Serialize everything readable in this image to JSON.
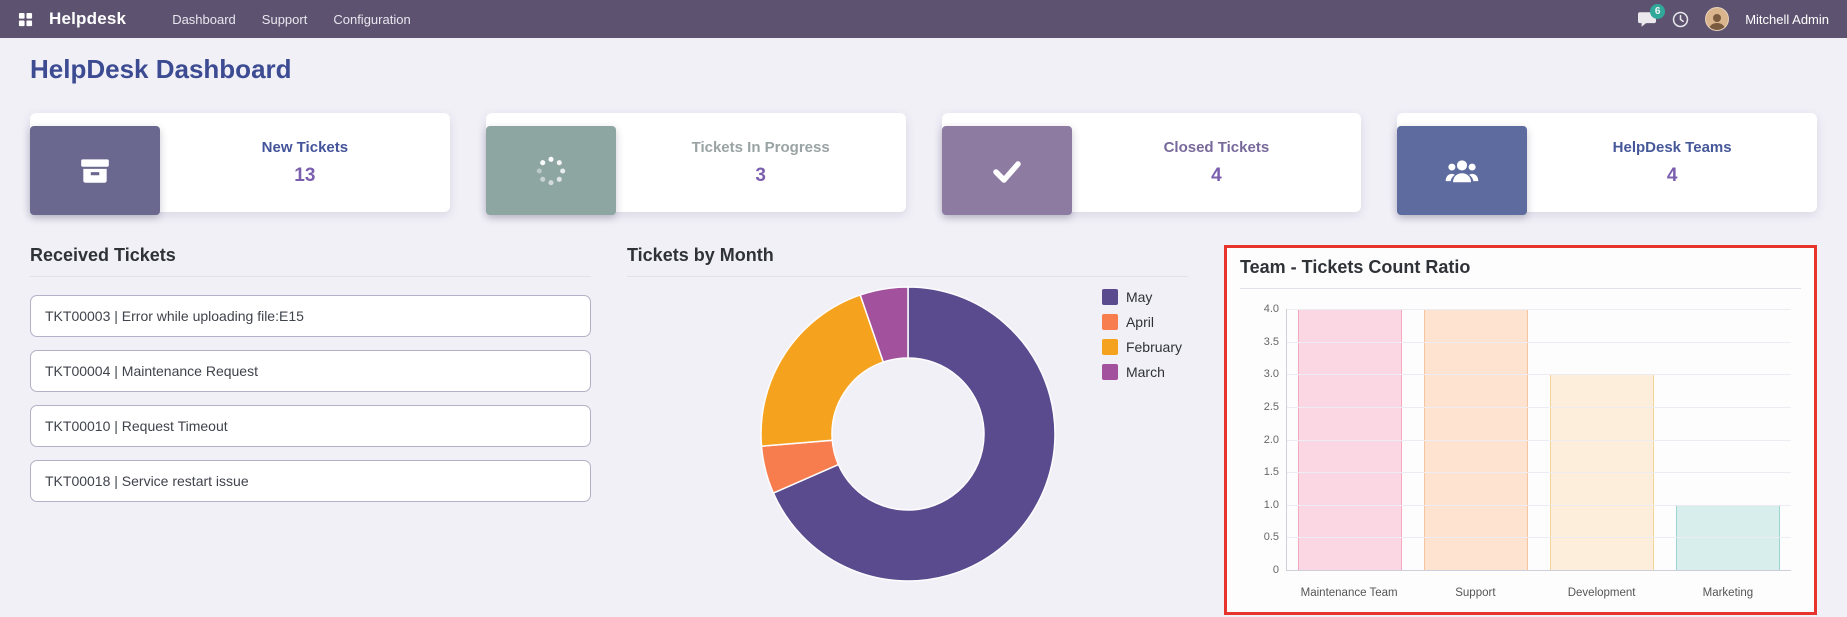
{
  "colors": {
    "navbar": "#5d5370",
    "page_title": "#3d4c92",
    "highlight": "#e5352c",
    "badge": "#2fae9d"
  },
  "navbar": {
    "brand": "Helpdesk",
    "menu": [
      {
        "label": "Dashboard"
      },
      {
        "label": "Support"
      },
      {
        "label": "Configuration"
      }
    ],
    "messages_badge": "6",
    "user_name": "Mitchell Admin"
  },
  "page_title": "HelpDesk Dashboard",
  "kpis": [
    {
      "label": "New Tickets",
      "value": "13",
      "icon": "inbox-icon",
      "block_color": "#6b6890",
      "label_color": "#44549a",
      "value_color": "#7b5fae"
    },
    {
      "label": "Tickets In Progress",
      "value": "3",
      "icon": "spinner-icon",
      "block_color": "#8ea6a2",
      "label_color": "#9aa3a4",
      "value_color": "#7b5fae"
    },
    {
      "label": "Closed Tickets",
      "value": "4",
      "icon": "check-icon",
      "block_color": "#8d7ba2",
      "label_color": "#77699a",
      "value_color": "#7b5fae"
    },
    {
      "label": "HelpDesk Teams",
      "value": "4",
      "icon": "team-icon",
      "block_color": "#5e6b9e",
      "label_color": "#46589a",
      "value_color": "#7b5fae"
    }
  ],
  "received": {
    "title": "Received Tickets",
    "items": [
      "TKT00003 | Error while uploading file:E15",
      "TKT00004 | Maintenance Request",
      "TKT00010 | Request Timeout",
      "TKT00018 | Service restart issue"
    ]
  },
  "chart_data": [
    {
      "type": "pie",
      "donut": true,
      "title": "Tickets by Month",
      "labels": [
        "May",
        "April",
        "February",
        "March"
      ],
      "values": [
        13,
        1,
        4,
        1
      ],
      "colors": [
        "#5a4b8f",
        "#f77d4f",
        "#f5a31f",
        "#a2519c"
      ],
      "legend_position": "right"
    },
    {
      "type": "bar",
      "title": "Team - Tickets Count Ratio",
      "categories": [
        "Maintenance Team",
        "Support",
        "Development",
        "Marketing"
      ],
      "values": [
        4,
        4,
        3,
        1
      ],
      "bar_fill_colors": [
        "#fbd7e3",
        "#fde3d0",
        "#fceedb",
        "#d8eeec"
      ],
      "bar_border_colors": [
        "#f4a7bf",
        "#f8c49e",
        "#f0d49c",
        "#9ed4cf"
      ],
      "ylim": [
        0,
        4
      ],
      "yticks": [
        "4.0",
        "3.5",
        "3.0",
        "2.5",
        "2.0",
        "1.5",
        "1.0",
        "0.5",
        "0"
      ],
      "grid": true,
      "legend_position": "none"
    }
  ]
}
